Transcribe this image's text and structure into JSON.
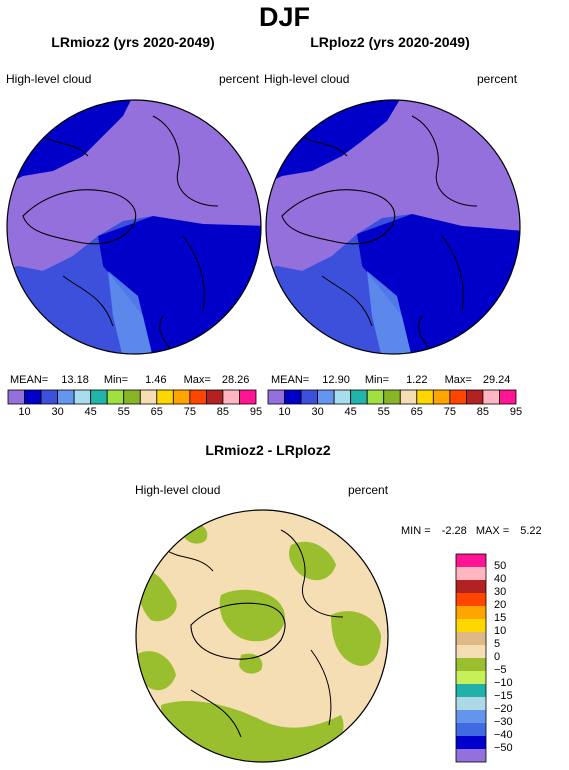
{
  "title": "DJF",
  "panels": [
    {
      "name": "left",
      "title": "LRmioz2 (yrs 2020-2049)",
      "variable": "High-level cloud",
      "units": "percent",
      "stats": {
        "mean_label": "MEAN=",
        "mean": "13.18",
        "min_label": "Min=",
        "min": "1.46",
        "max_label": "Max=",
        "max": "28.26"
      }
    },
    {
      "name": "right",
      "title": "LRploz2 (yrs 2020-2049)",
      "variable": "High-level cloud",
      "units": "percent",
      "stats": {
        "mean_label": "MEAN=",
        "mean": "12.90",
        "min_label": "Min=",
        "min": "1.22",
        "max_label": "Max=",
        "max": "29.24"
      }
    }
  ],
  "colorbar": {
    "colors": [
      "#9370db",
      "#0000c8",
      "#3c50dc",
      "#6496f0",
      "#aadcf0",
      "#20b4aa",
      "#a0e040",
      "#88b428",
      "#f5deb3",
      "#ffd700",
      "#ffa500",
      "#ff4500",
      "#b22222",
      "#ffb6c1",
      "#ff1493"
    ],
    "labels": [
      "10",
      "30",
      "45",
      "55",
      "65",
      "75",
      "85",
      "95"
    ],
    "label_glyphs": [
      "10",
      "30",
      "45",
      "55",
      "65",
      "75",
      "85",
      "95"
    ]
  },
  "diff": {
    "title": "LRmioz2 - LRploz2",
    "variable": "High-level cloud",
    "units": "percent",
    "min_label": "MIN =",
    "min": "-2.28",
    "max_label": "MAX =",
    "max": "5.22",
    "colors": [
      "#ff1493",
      "#ffb6c1",
      "#b22222",
      "#ff4500",
      "#ffa500",
      "#ffd700",
      "#deb887",
      "#f5deb3",
      "#9abf2e",
      "#c6ef5a",
      "#20b2aa",
      "#add8e6",
      "#6495ed",
      "#4169e1",
      "#0000cd",
      "#9370db"
    ],
    "labels": [
      "50",
      "40",
      "30",
      "20",
      "15",
      "10",
      "5",
      "0",
      "−5",
      "−10",
      "−15",
      "−20",
      "−30",
      "−40",
      "−50"
    ]
  }
}
